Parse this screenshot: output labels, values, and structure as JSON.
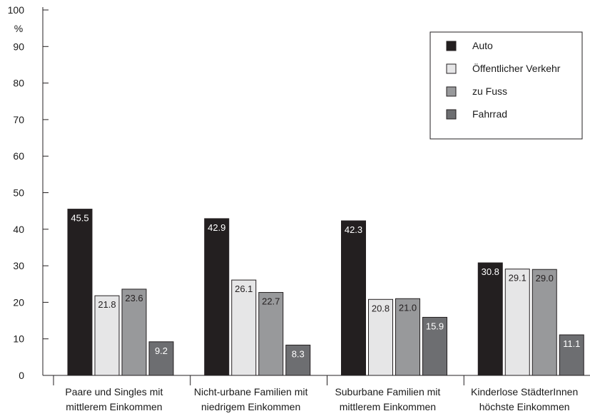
{
  "chart_data": {
    "type": "bar",
    "unit": "%",
    "ylim": [
      0,
      100
    ],
    "yticks": [
      0,
      10,
      20,
      30,
      40,
      50,
      60,
      70,
      80,
      90,
      100
    ],
    "grid": false,
    "legend_position": "top-right",
    "categories": [
      [
        "Paare und Singles mit",
        "mittlerem Einkommen"
      ],
      [
        "Nicht-urbane Familien mit",
        "niedrigem Einkommen"
      ],
      [
        "Suburbane Familien mit",
        "mittlerem Einkommen"
      ],
      [
        "Kinderlose StädterInnen",
        "höchste Einkommen"
      ]
    ],
    "series": [
      {
        "name": "Auto",
        "color": "#231f20",
        "label_color": "#ffffff",
        "values": [
          45.5,
          42.9,
          42.3,
          30.8
        ]
      },
      {
        "name": "Öffentlicher Verkehr",
        "color": "#e6e6e7",
        "label_color": "#231f20",
        "values": [
          21.8,
          26.1,
          20.8,
          29.1
        ]
      },
      {
        "name": "zu Fuss",
        "color": "#98999b",
        "label_color": "#231f20",
        "values": [
          23.6,
          22.7,
          21.0,
          29.0
        ]
      },
      {
        "name": "Fahrrad",
        "color": "#6d6e71",
        "label_color": "#ffffff",
        "values": [
          9.2,
          8.3,
          15.9,
          11.1
        ]
      }
    ],
    "value_labels": [
      [
        "45.5",
        "42.9",
        "42.3",
        "30.8"
      ],
      [
        "21.8",
        "26.1",
        "20.8",
        "29.1"
      ],
      [
        "23.6",
        "22.7",
        "21.0",
        "29.0"
      ],
      [
        "9.2",
        "8.3",
        "15.9",
        "11.1"
      ]
    ]
  }
}
